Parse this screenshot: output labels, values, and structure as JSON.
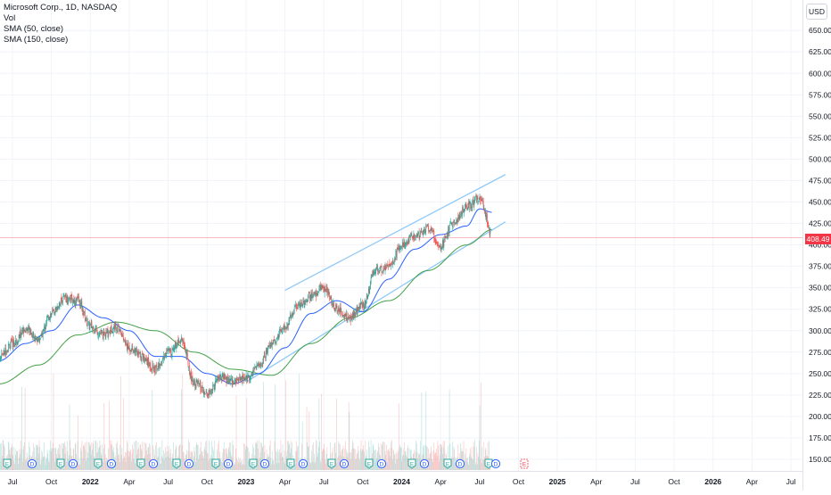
{
  "legend": {
    "title": "Microsoft Corp., 1D, NASDAQ",
    "volume": "Vol",
    "sma50": "SMA (50, close)",
    "sma150": "SMA (150, close)"
  },
  "currency_button": "USD",
  "last_price_label": "408.49",
  "colors": {
    "up": "#26a69a",
    "down": "#ef5350",
    "sma50": "#2962ff",
    "sma150": "#43a047",
    "channel": "#90caf9",
    "last_price_line": "#f23645",
    "earnings_badge": "#26a69a",
    "dividend_badge": "#2962ff",
    "future_earnings_badge": "#f23645"
  },
  "chart_data": {
    "type": "candlestick",
    "symbol": "Microsoft Corp.",
    "interval": "1D",
    "exchange": "NASDAQ",
    "currency": "USD",
    "last_price": 408.49,
    "price_axis": {
      "range": [
        140,
        685
      ],
      "ticks": [
        "150.00",
        "175.00",
        "200.00",
        "225.00",
        "250.00",
        "275.00",
        "300.00",
        "325.00",
        "350.00",
        "375.00",
        "400.00",
        "425.00",
        "450.00",
        "475.00",
        "500.00",
        "525.00",
        "550.00",
        "575.00",
        "600.00",
        "625.00",
        "650.00"
      ]
    },
    "time_axis": {
      "labels": [
        "Jul",
        "Oct",
        "2022",
        "Apr",
        "Jul",
        "Oct",
        "2023",
        "Apr",
        "Jul",
        "Oct",
        "2024",
        "Apr",
        "Jul",
        "Oct",
        "2025",
        "Apr",
        "Jul",
        "Oct",
        "2026",
        "Apr",
        "Jul"
      ]
    },
    "price_path_monthly": [
      {
        "date": "2021-06",
        "close": 270
      },
      {
        "date": "2021-07",
        "close": 285
      },
      {
        "date": "2021-08",
        "close": 302
      },
      {
        "date": "2021-09",
        "close": 290
      },
      {
        "date": "2021-10",
        "close": 320
      },
      {
        "date": "2021-11",
        "close": 338
      },
      {
        "date": "2021-12",
        "close": 335
      },
      {
        "date": "2022-01",
        "close": 305
      },
      {
        "date": "2022-02",
        "close": 295
      },
      {
        "date": "2022-03",
        "close": 305
      },
      {
        "date": "2022-04",
        "close": 280
      },
      {
        "date": "2022-05",
        "close": 270
      },
      {
        "date": "2022-06",
        "close": 255
      },
      {
        "date": "2022-07",
        "close": 275
      },
      {
        "date": "2022-08",
        "close": 290
      },
      {
        "date": "2022-09",
        "close": 240
      },
      {
        "date": "2022-10",
        "close": 225
      },
      {
        "date": "2022-11",
        "close": 245
      },
      {
        "date": "2022-12",
        "close": 240
      },
      {
        "date": "2023-01",
        "close": 245
      },
      {
        "date": "2023-02",
        "close": 260
      },
      {
        "date": "2023-03",
        "close": 285
      },
      {
        "date": "2023-04",
        "close": 305
      },
      {
        "date": "2023-05",
        "close": 330
      },
      {
        "date": "2023-06",
        "close": 340
      },
      {
        "date": "2023-07",
        "close": 350
      },
      {
        "date": "2023-08",
        "close": 325
      },
      {
        "date": "2023-09",
        "close": 315
      },
      {
        "date": "2023-10",
        "close": 330
      },
      {
        "date": "2023-11",
        "close": 370
      },
      {
        "date": "2023-12",
        "close": 375
      },
      {
        "date": "2024-01",
        "close": 400
      },
      {
        "date": "2024-02",
        "close": 410
      },
      {
        "date": "2024-03",
        "close": 420
      },
      {
        "date": "2024-04",
        "close": 400
      },
      {
        "date": "2024-05",
        "close": 425
      },
      {
        "date": "2024-06",
        "close": 445
      },
      {
        "date": "2024-07",
        "close": 455
      },
      {
        "date": "2024-08",
        "close": 408.49
      }
    ],
    "sma50_path": [
      {
        "date": "2021-06",
        "value": 265
      },
      {
        "date": "2021-08",
        "value": 285
      },
      {
        "date": "2021-10",
        "value": 300
      },
      {
        "date": "2021-12",
        "value": 330
      },
      {
        "date": "2022-02",
        "value": 315
      },
      {
        "date": "2022-04",
        "value": 300
      },
      {
        "date": "2022-06",
        "value": 270
      },
      {
        "date": "2022-08",
        "value": 270
      },
      {
        "date": "2022-10",
        "value": 250
      },
      {
        "date": "2022-12",
        "value": 238
      },
      {
        "date": "2023-02",
        "value": 250
      },
      {
        "date": "2023-04",
        "value": 280
      },
      {
        "date": "2023-06",
        "value": 320
      },
      {
        "date": "2023-08",
        "value": 335
      },
      {
        "date": "2023-10",
        "value": 322
      },
      {
        "date": "2023-12",
        "value": 360
      },
      {
        "date": "2024-02",
        "value": 395
      },
      {
        "date": "2024-04",
        "value": 412
      },
      {
        "date": "2024-06",
        "value": 422
      },
      {
        "date": "2024-07",
        "value": 442
      },
      {
        "date": "2024-08",
        "value": 438
      }
    ],
    "sma150_path": [
      {
        "date": "2021-06",
        "value": 238
      },
      {
        "date": "2021-09",
        "value": 260
      },
      {
        "date": "2021-12",
        "value": 295
      },
      {
        "date": "2022-03",
        "value": 310
      },
      {
        "date": "2022-06",
        "value": 300
      },
      {
        "date": "2022-09",
        "value": 275
      },
      {
        "date": "2022-12",
        "value": 255
      },
      {
        "date": "2023-03",
        "value": 248
      },
      {
        "date": "2023-06",
        "value": 285
      },
      {
        "date": "2023-09",
        "value": 315
      },
      {
        "date": "2023-12",
        "value": 335
      },
      {
        "date": "2024-03",
        "value": 370
      },
      {
        "date": "2024-06",
        "value": 400
      },
      {
        "date": "2024-08",
        "value": 418
      }
    ],
    "channel_lines": [
      {
        "start": {
          "date": "2023-04",
          "price": 347
        },
        "end": {
          "date": "2024-09",
          "price": 482
        }
      },
      {
        "start": {
          "date": "2023-01",
          "price": 240
        },
        "end": {
          "date": "2024-09",
          "price": 427
        }
      }
    ],
    "events_row": [
      "E",
      "D",
      "E",
      "D",
      "E",
      "D",
      "E",
      "D",
      "E",
      "D",
      "E",
      "D",
      "E",
      "D",
      "E",
      "D",
      "E",
      "D",
      "E",
      "D",
      "E",
      "D",
      "E",
      "D",
      "E",
      "D",
      "E"
    ],
    "future_event": "E"
  }
}
